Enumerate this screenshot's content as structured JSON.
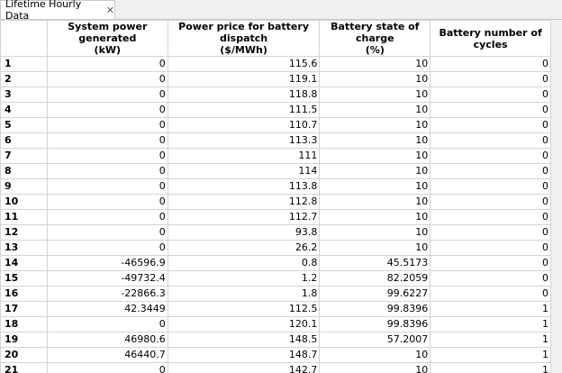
{
  "tab": {
    "title": "Lifetime Hourly Data"
  },
  "table": {
    "columns": [
      "System power generated\n(kW)",
      "Power price for battery dispatch\n($/MWh)",
      "Battery state of charge\n(%)",
      "Battery number of cycles"
    ],
    "rows": [
      [
        1,
        0,
        115.6,
        10,
        0
      ],
      [
        2,
        0,
        119.1,
        10,
        0
      ],
      [
        3,
        0,
        118.8,
        10,
        0
      ],
      [
        4,
        0,
        111.5,
        10,
        0
      ],
      [
        5,
        0,
        110.7,
        10,
        0
      ],
      [
        6,
        0,
        113.3,
        10,
        0
      ],
      [
        7,
        0,
        111,
        10,
        0
      ],
      [
        8,
        0,
        114,
        10,
        0
      ],
      [
        9,
        0,
        113.8,
        10,
        0
      ],
      [
        10,
        0,
        112.8,
        10,
        0
      ],
      [
        11,
        0,
        112.7,
        10,
        0
      ],
      [
        12,
        0,
        93.8,
        10,
        0
      ],
      [
        13,
        0,
        26.2,
        10,
        0
      ],
      [
        14,
        -46596.9,
        0.8,
        45.5173,
        0
      ],
      [
        15,
        -49732.4,
        1.2,
        82.2059,
        0
      ],
      [
        16,
        -22866.3,
        1.8,
        99.6227,
        0
      ],
      [
        17,
        42.3449,
        112.5,
        99.8396,
        1
      ],
      [
        18,
        0,
        120.1,
        99.8396,
        1
      ],
      [
        19,
        46980.6,
        148.5,
        57.2007,
        1
      ],
      [
        20,
        46440.7,
        148.7,
        10,
        1
      ],
      [
        21,
        0,
        142.7,
        10,
        1
      ]
    ]
  }
}
